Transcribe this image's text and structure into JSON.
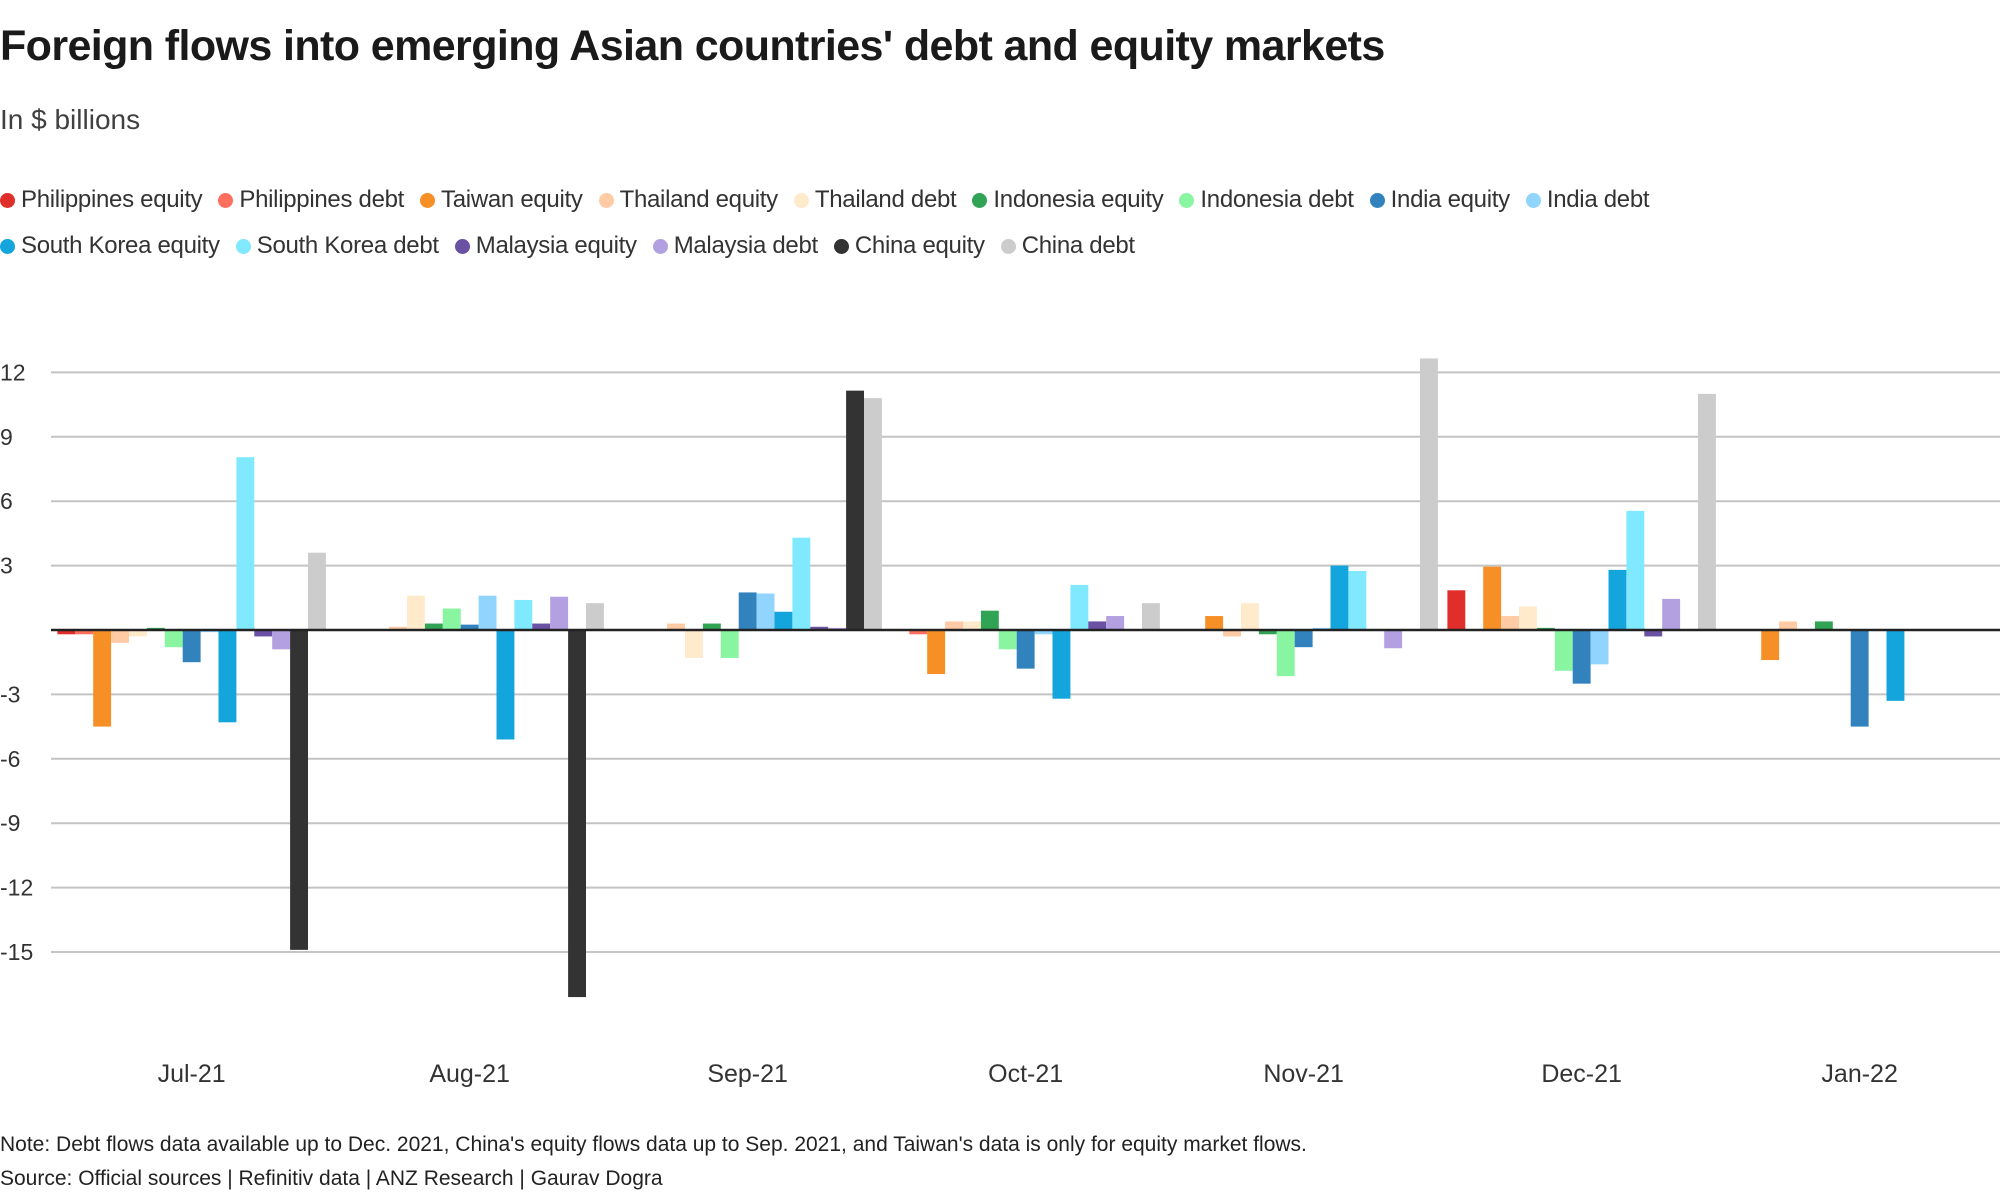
{
  "chart_data": {
    "type": "bar",
    "title": "Foreign flows into emerging Asian countries' debt and equity markets",
    "subtitle": "In $ billions",
    "categories": [
      "Jul-21",
      "Aug-21",
      "Sep-21",
      "Oct-21",
      "Nov-21",
      "Dec-21",
      "Jan-22"
    ],
    "ylim": [
      -19,
      13
    ],
    "yticks": [
      12,
      9,
      6,
      3,
      0,
      -3,
      -6,
      -9,
      -12,
      -15
    ],
    "ytick_labels": [
      "12",
      "9",
      "6",
      "3",
      "",
      "-3",
      "-6",
      "-9",
      "-12",
      "-15"
    ],
    "grid": true,
    "legend_position": "top",
    "series": [
      {
        "name": "Philippines equity",
        "color": "#e02e2a",
        "values": [
          -0.2,
          null,
          null,
          null,
          null,
          1.85,
          null
        ]
      },
      {
        "name": "Philippines debt",
        "color": "#ff6f5e",
        "values": [
          -0.2,
          null,
          null,
          -0.2,
          0.05,
          null,
          null
        ]
      },
      {
        "name": "Taiwan equity",
        "color": "#f58f26",
        "values": [
          -4.5,
          0.05,
          null,
          -2.05,
          0.65,
          2.95,
          -1.4
        ]
      },
      {
        "name": "Thailand equity",
        "color": "#ffcba5",
        "values": [
          -0.6,
          0.15,
          0.3,
          0.4,
          -0.3,
          0.65,
          0.4
        ]
      },
      {
        "name": "Thailand debt",
        "color": "#ffebcc",
        "values": [
          -0.3,
          1.6,
          -1.3,
          0.4,
          1.25,
          1.1,
          null
        ]
      },
      {
        "name": "Indonesia equity",
        "color": "#31a354",
        "values": [
          0.1,
          0.3,
          0.3,
          0.9,
          -0.2,
          0.1,
          0.4
        ]
      },
      {
        "name": "Indonesia debt",
        "color": "#8af5a0",
        "values": [
          -0.8,
          1.0,
          -1.3,
          -0.9,
          -2.15,
          -1.9,
          null
        ]
      },
      {
        "name": "India equity",
        "color": "#3182bd",
        "values": [
          -1.5,
          0.25,
          1.75,
          -1.8,
          -0.8,
          -2.5,
          -4.5
        ]
      },
      {
        "name": "India debt",
        "color": "#91d5ff",
        "values": [
          -0.1,
          1.6,
          1.7,
          -0.2,
          0.1,
          -1.6,
          null
        ]
      },
      {
        "name": "South Korea equity",
        "color": "#14a5dc",
        "values": [
          -4.3,
          -5.1,
          0.85,
          -3.2,
          3.0,
          2.8,
          -3.3
        ]
      },
      {
        "name": "South Korea debt",
        "color": "#80e8ff",
        "values": [
          8.05,
          1.4,
          4.3,
          2.1,
          2.75,
          5.55,
          null
        ]
      },
      {
        "name": "Malaysia equity",
        "color": "#6a51a3",
        "values": [
          -0.3,
          0.3,
          0.15,
          0.4,
          null,
          -0.3,
          null
        ]
      },
      {
        "name": "Malaysia debt",
        "color": "#b3a0e0",
        "values": [
          -0.9,
          1.55,
          0.1,
          0.65,
          -0.85,
          1.45,
          null
        ]
      },
      {
        "name": "China equity",
        "color": "#333333",
        "values": [
          -14.9,
          -17.1,
          11.15,
          null,
          null,
          null,
          null
        ]
      },
      {
        "name": "China debt",
        "color": "#cccccc",
        "values": [
          3.6,
          1.25,
          10.8,
          1.25,
          12.65,
          11.0,
          null
        ]
      }
    ]
  },
  "footer": {
    "note": "Note: Debt flows data available up to Dec. 2021, China's equity flows data up to Sep. 2021, and Taiwan's data is only for equity market flows.",
    "source": "Source: Official sources | Refinitiv data | ANZ Research | Gaurav Dogra"
  }
}
